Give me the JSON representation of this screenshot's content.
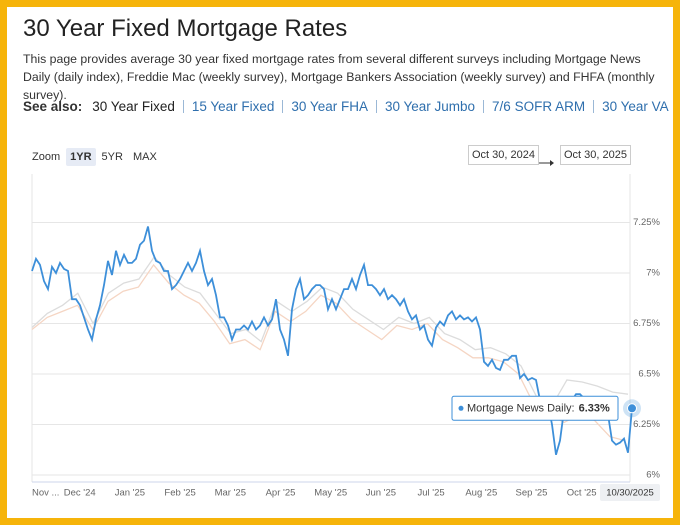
{
  "header": {
    "title": "30 Year Fixed Mortgage Rates",
    "description": "This page provides average 30 year fixed mortgage rates from several different surveys including Mortgage News Daily (daily index), Freddie Mac (weekly survey), Mortgage Bankers Association (weekly survey) and FHFA (monthly survey)."
  },
  "see_also": {
    "label": "See also:",
    "links": [
      "30 Year Fixed",
      "15 Year Fixed",
      "30 Year FHA",
      "30 Year Jumbo",
      "7/6 SOFR ARM",
      "30 Year VA"
    ],
    "current": 0
  },
  "zoom": {
    "label": "Zoom",
    "options": [
      "1YR",
      "5YR",
      "MAX"
    ],
    "selected": 0
  },
  "range": {
    "from": "Oct 30, 2024",
    "to": "Oct 30, 2025"
  },
  "chart_data": {
    "type": "line",
    "x_labels": [
      "Nov ...",
      "Dec '24",
      "Jan '25",
      "Feb '25",
      "Mar '25",
      "Apr '25",
      "May '25",
      "Jun '25",
      "Jul '25",
      "Aug '25",
      "Sep '25",
      "Oct '25"
    ],
    "ylim": [
      5.98,
      7.49
    ],
    "yticks": [
      {
        "value": 6,
        "label": "6%"
      },
      {
        "value": 6.25,
        "label": "6.25%"
      },
      {
        "value": 6.5,
        "label": "6.5%"
      },
      {
        "value": 6.75,
        "label": "6.75%"
      },
      {
        "value": 7,
        "label": "7%"
      },
      {
        "value": 7.25,
        "label": "7.25%"
      }
    ],
    "grid": true,
    "series": [
      {
        "color": "#f5d5c3",
        "values": [
          6.72,
          6.78,
          6.81,
          6.84,
          6.72,
          6.86,
          6.91,
          6.93,
          7.04,
          6.95,
          6.89,
          6.85,
          6.76,
          6.65,
          6.67,
          6.62,
          6.81,
          6.76,
          6.81,
          6.89,
          6.85,
          6.77,
          6.72,
          6.67,
          6.74,
          6.72,
          6.75,
          6.67,
          6.63,
          6.58,
          6.58,
          6.56,
          6.5,
          6.35,
          6.3,
          6.26,
          6.3,
          6.27,
          6.19,
          6.17
        ]
      },
      {
        "color": "#dcdcdc",
        "values": [
          6.73,
          6.8,
          6.84,
          6.9,
          6.75,
          6.9,
          6.95,
          6.97,
          7.08,
          6.99,
          6.93,
          6.9,
          6.8,
          6.7,
          6.72,
          6.66,
          6.86,
          6.81,
          6.86,
          6.93,
          6.9,
          6.82,
          6.77,
          6.72,
          6.78,
          6.75,
          6.78,
          6.7,
          6.67,
          6.62,
          6.63,
          6.6,
          6.54,
          6.39,
          6.34,
          6.47,
          6.46,
          6.44,
          6.41,
          6.4
        ]
      },
      {
        "color": "#3d8fd9",
        "values": [
          7.01,
          7.07,
          7.04,
          6.96,
          6.92,
          7.03,
          7.0,
          7.05,
          7.02,
          7.01,
          6.87,
          6.87,
          6.84,
          6.78,
          6.72,
          6.67,
          6.77,
          6.84,
          6.94,
          7.06,
          6.99,
          7.11,
          7.04,
          7.09,
          7.05,
          7.05,
          7.07,
          7.14,
          7.16,
          7.23,
          7.11,
          7.06,
          7.05,
          7.01,
          7.01,
          6.92,
          6.94,
          6.97,
          7.01,
          7.05,
          7.01,
          7.05,
          7.11,
          7.01,
          6.94,
          6.97,
          6.89,
          6.78,
          6.78,
          6.74,
          6.67,
          6.72,
          6.72,
          6.74,
          6.72,
          6.76,
          6.72,
          6.74,
          6.78,
          6.74,
          6.77,
          6.87,
          6.72,
          6.67,
          6.59,
          6.82,
          6.92,
          6.97,
          6.87,
          6.89,
          6.92,
          6.94,
          6.94,
          6.92,
          6.82,
          6.87,
          6.82,
          6.87,
          6.92,
          6.92,
          6.97,
          6.92,
          6.99,
          7.04,
          6.94,
          6.94,
          6.92,
          6.89,
          6.92,
          6.87,
          6.89,
          6.87,
          6.84,
          6.87,
          6.81,
          6.77,
          6.79,
          6.72,
          6.74,
          6.67,
          6.64,
          6.73,
          6.76,
          6.74,
          6.79,
          6.81,
          6.77,
          6.79,
          6.77,
          6.78,
          6.76,
          6.78,
          6.72,
          6.56,
          6.54,
          6.57,
          6.53,
          6.52,
          6.57,
          6.57,
          6.59,
          6.59,
          6.48,
          6.5,
          6.47,
          6.48,
          6.47,
          6.37,
          6.35,
          6.35,
          6.25,
          6.1,
          6.17,
          6.32,
          6.35,
          6.37,
          6.4,
          6.4,
          6.38,
          6.37,
          6.36,
          6.35,
          6.33,
          6.31,
          6.3,
          6.17,
          6.15,
          6.16,
          6.18,
          6.11,
          6.33
        ]
      }
    ],
    "tooltip": {
      "text": "Mortgage News Daily:",
      "value_label": "6.33%"
    },
    "crosshair_label": "10/30/2025"
  }
}
